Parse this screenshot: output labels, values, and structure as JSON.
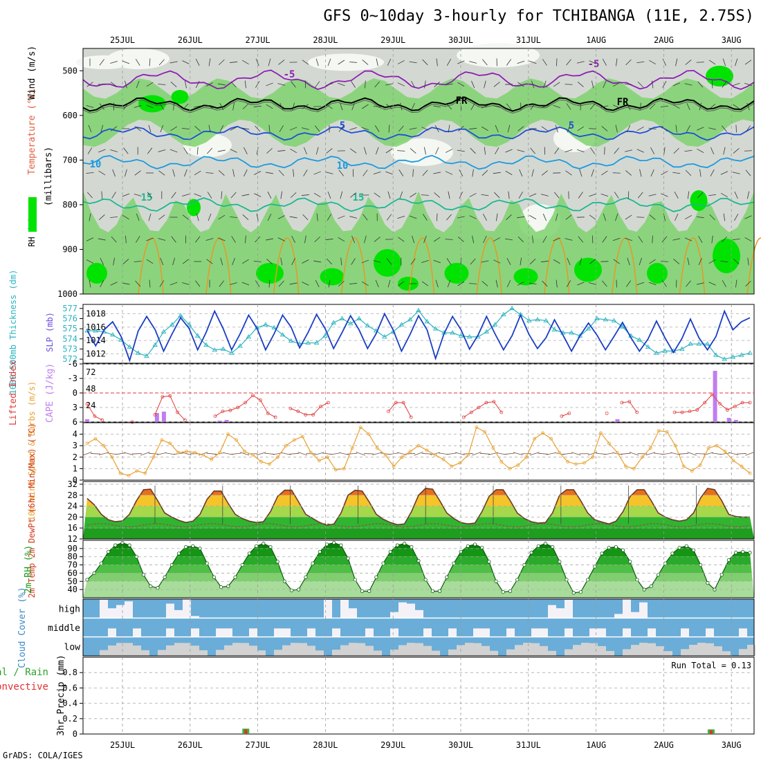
{
  "title": "GFS 0~10day 3-hourly for TCHIBANGA (11E, 2.75S)",
  "footer": "GrADS: COLA/IGES",
  "colors": {
    "rh_light": "#d4d8d2",
    "rh_mid": "#7ed36e",
    "rh_high": "#00e300",
    "temp_violet": "#8a1fb3",
    "temp_blue": "#1d4fd6",
    "temp_sky": "#1a9ae0",
    "temp_teal": "#19b88f",
    "temp_orange": "#e39b2a",
    "slp": "#1a3dc4",
    "thickness": "#2ab3c0",
    "lifted": "#e03a3a",
    "cape": "#c07ef0",
    "wind": "#e9a030",
    "temp_fill_hot": "#e86f1b",
    "temp_fill_warm": "#f5c32a",
    "temp_fill_mild": "#a5d84a",
    "temp_fill_cool": "#2fb52f",
    "rh_fill": "#22a822",
    "cloud_blue": "#6aadd8",
    "cloud_white": "#f4f2f7",
    "cloud_gray": "#d2d2d2",
    "precip_total": "#3cb43c",
    "precip_conv": "#e03030"
  },
  "chart_data": [
    {
      "type": "heatmap",
      "name": "upper-air",
      "x_ticks": [
        "25JUL",
        "26JUL",
        "27JUL",
        "28JUL",
        "29JUL",
        "30JUL",
        "31JUL",
        "1AUG",
        "2AUG",
        "3AUG"
      ],
      "ylabel_parts": [
        "RH (%)",
        "Temperature (°C)",
        "Wind (m/s)",
        "(millibars)"
      ],
      "y_ticks": [
        500,
        600,
        700,
        800,
        900,
        1000
      ],
      "ylim": [
        450,
        1000
      ],
      "contours": [
        {
          "label": "-5",
          "level_mb": 520,
          "color_key": "temp_violet"
        },
        {
          "label": "FR",
          "level_mb": 575,
          "color_key": "black"
        },
        {
          "label": "5",
          "level_mb": 640,
          "color_key": "temp_blue"
        },
        {
          "label": "10",
          "level_mb": 705,
          "color_key": "temp_sky"
        },
        {
          "label": "15",
          "level_mb": 800,
          "color_key": "temp_teal"
        }
      ],
      "contour_labels": [
        "-5",
        "5",
        "FR",
        "10",
        "15",
        "-5",
        "FR",
        "5",
        "10",
        "15"
      ]
    },
    {
      "type": "line",
      "name": "slp-thickness",
      "ylabel_left": "1000-500mb Thickness (dm)",
      "ylabel_right": "SLP (mb)",
      "left_ticks": [
        572,
        573,
        574,
        575,
        576,
        577
      ],
      "right_ticks": [
        1012,
        1014,
        1016,
        1018
      ],
      "slp_range": [
        1010.6,
        1019.4
      ],
      "thickness_range": [
        571.6,
        577.4
      ],
      "series": [
        {
          "name": "SLP",
          "values": [
            1015.5,
            1013.2,
            1015.6,
            1016.8,
            1014.6,
            1011.0,
            1015.4,
            1017.6,
            1015.6,
            1012.4,
            1015.0,
            1017.4,
            1015.8,
            1012.6,
            1015.2,
            1018.4,
            1015.8,
            1012.6,
            1015.0,
            1017.8,
            1015.8,
            1012.6,
            1015.0,
            1017.8,
            1016.0,
            1012.9,
            1015.2,
            1017.9,
            1015.8,
            1012.8,
            1015.2,
            1017.7,
            1015.6,
            1012.8,
            1015.0,
            1018.0,
            1015.6,
            1012.4,
            1014.9,
            1017.7,
            1015.6,
            1011.3,
            1015.0,
            1017.6,
            1015.6,
            1012.7,
            1014.8,
            1017.6,
            1015.0,
            1012.6,
            1014.7,
            1017.8,
            1014.9,
            1012.8,
            1014.4,
            1017.1,
            1014.8,
            1012.4,
            1014.7,
            1016.6,
            1014.8,
            1012.6,
            1014.6,
            1016.7,
            1014.4,
            1012.4,
            1014.2,
            1016.9,
            1014.4,
            1012.2,
            1014.3,
            1017.2,
            1014.4,
            1012.6,
            1014.6,
            1018.4,
            1015.6,
            1016.8,
            1017.4
          ]
        },
        {
          "name": "Thickness",
          "values": [
            574.8,
            574.8,
            574.7,
            574.4,
            573.9,
            573.2,
            572.6,
            572.3,
            573.4,
            574.7,
            575.4,
            576.3,
            575.4,
            574.3,
            573.4,
            572.9,
            573.0,
            572.6,
            573.3,
            574.2,
            575.1,
            575.4,
            575.1,
            574.4,
            573.8,
            573.5,
            573.6,
            573.6,
            574.3,
            575.6,
            576.0,
            575.5,
            576.0,
            575.3,
            574.8,
            574.2,
            574.7,
            575.4,
            575.9,
            576.8,
            575.7,
            575.0,
            574.6,
            574.6,
            574.3,
            574.2,
            574.2,
            574.7,
            575.4,
            576.4,
            577.0,
            576.4,
            575.8,
            575.9,
            575.8,
            574.9,
            574.6,
            574.6,
            574.3,
            575.0,
            576.0,
            575.9,
            575.8,
            575.2,
            574.3,
            573.9,
            573.2,
            572.6,
            572.8,
            572.8,
            573.0,
            573.5,
            573.5,
            573.5,
            572.4,
            572.0,
            572.2,
            572.4,
            572.6
          ]
        }
      ]
    },
    {
      "type": "bar",
      "name": "lifted-cape",
      "ylabel_left": "Lifted Index",
      "ylabel_right": "CAPE (J/kg)",
      "li_ticks": [
        -6,
        -3,
        0,
        3,
        6
      ],
      "cape_ticks": [
        24,
        48,
        72
      ],
      "series": [
        {
          "name": "Lifted Index",
          "values": [
            2.3,
            4.8,
            5.6,
            null,
            null,
            null,
            6.0,
            null,
            null,
            4.5,
            0.8,
            0.6,
            4.0,
            5.6,
            null,
            null,
            null,
            4.8,
            3.8,
            3.6,
            3.0,
            2.0,
            0.5,
            1.5,
            4.2,
            5.0,
            null,
            3.2,
            3.8,
            4.5,
            4.5,
            2.8,
            2.0,
            null,
            null,
            null,
            null,
            null,
            null,
            null,
            3.8,
            2.0,
            2.0,
            5.0,
            null,
            null,
            null,
            null,
            null,
            null,
            5.0,
            4.0,
            3.0,
            2.0,
            1.8,
            4.0,
            null,
            null,
            null,
            null,
            null,
            null,
            null,
            4.8,
            4.2,
            null,
            null,
            null,
            null,
            4.2,
            null,
            2.0,
            1.8,
            4.0,
            null,
            null,
            null,
            null,
            4.0,
            4.0,
            3.8,
            3.5,
            2.0,
            0.3,
            2.2,
            3.5,
            2.8,
            2.0,
            2.0
          ]
        },
        {
          "name": "CAPE",
          "values": [
            4,
            0,
            0,
            0,
            0,
            0,
            0,
            0,
            0,
            0,
            13,
            15,
            0,
            0,
            0,
            0,
            0,
            0,
            0,
            2,
            3,
            0,
            0,
            0,
            0,
            0,
            0,
            0,
            0,
            0,
            0,
            0,
            0,
            0,
            0,
            0,
            0,
            0,
            0,
            0,
            0,
            0,
            0,
            0,
            0,
            0,
            0,
            0,
            0,
            0,
            0,
            0,
            0,
            0,
            0,
            0,
            0,
            0,
            0,
            0,
            0,
            0,
            0,
            0,
            0,
            0,
            0,
            0,
            0,
            0,
            0,
            0,
            0,
            0,
            0,
            0,
            4,
            0,
            0,
            0,
            0,
            0,
            0,
            0,
            0,
            0,
            0,
            0,
            0,
            0,
            74,
            0,
            6,
            3,
            0,
            0
          ]
        }
      ]
    },
    {
      "type": "line",
      "name": "wind10m",
      "ylabel": "10m Wind Speed & Barbs (m/s)",
      "ylim": [
        0,
        5
      ],
      "y_ticks": [
        0,
        1,
        2,
        3,
        4
      ],
      "values": [
        3.2,
        3.6,
        3.0,
        2.0,
        0.6,
        0.4,
        0.8,
        0.6,
        2.0,
        3.5,
        3.2,
        2.4,
        2.5,
        2.4,
        2.2,
        1.8,
        2.4,
        4.0,
        3.5,
        2.5,
        2.2,
        1.6,
        1.4,
        2.0,
        3.0,
        3.5,
        3.8,
        2.4,
        1.7,
        2.0,
        0.9,
        1.0,
        2.8,
        4.6,
        4.0,
        2.8,
        2.2,
        1.2,
        2.0,
        2.5,
        3.0,
        2.6,
        2.2,
        1.8,
        1.2,
        1.5,
        2.2,
        4.6,
        4.2,
        2.8,
        1.6,
        1.0,
        1.3,
        2.0,
        3.6,
        4.1,
        3.6,
        2.4,
        1.6,
        1.4,
        1.5,
        2.0,
        4.1,
        3.2,
        2.4,
        1.2,
        1.0,
        2.0,
        2.8,
        4.3,
        4.2,
        3.0,
        1.2,
        0.8,
        1.3,
        2.8,
        3.0,
        2.5,
        1.7,
        1.2,
        0.6
      ]
    },
    {
      "type": "area",
      "name": "temp2m",
      "ylabel": "2m Temp 2m DewPt (6hr Min/Max) (°C)",
      "ylim": [
        12,
        33
      ],
      "y_ticks": [
        12,
        16,
        20,
        24,
        28,
        32
      ],
      "temp": [
        26.8,
        24.5,
        21.0,
        19.0,
        18.3,
        18.6,
        21.0,
        26.0,
        30.0,
        30.2,
        26.0,
        21.5,
        20.0,
        18.8,
        18.0,
        18.5,
        21.0,
        26.5,
        29.5,
        29.5,
        25.0,
        21.0,
        19.5,
        18.5,
        18.0,
        18.3,
        22.0,
        27.5,
        29.8,
        29.8,
        25.5,
        21.0,
        19.5,
        18.0,
        17.0,
        17.5,
        21.5,
        28.0,
        29.8,
        29.5,
        25.5,
        21.0,
        19.2,
        18.0,
        17.2,
        17.5,
        22.0,
        28.0,
        30.5,
        30.2,
        26.0,
        21.5,
        19.5,
        18.0,
        17.5,
        17.8,
        22.0,
        27.5,
        30.0,
        30.0,
        26.0,
        21.5,
        19.5,
        18.3,
        17.8,
        18.0,
        21.5,
        28.0,
        30.0,
        30.0,
        26.0,
        21.5,
        19.0,
        18.2,
        17.5,
        18.5,
        22.0,
        27.5,
        30.0,
        30.0,
        26.0,
        21.5,
        20.0,
        19.0,
        18.5,
        19.0,
        21.5,
        27.0,
        30.5,
        30.0,
        26.0,
        21.0,
        20.2,
        20.0,
        20.0
      ]
    },
    {
      "type": "area",
      "name": "rh2m",
      "ylabel": "2m RH (%)",
      "ylim": [
        30,
        100
      ],
      "y_ticks": [
        40,
        50,
        60,
        70,
        80,
        90
      ],
      "values": [
        52,
        60,
        72,
        86,
        94,
        97,
        94,
        80,
        58,
        44,
        42,
        55,
        70,
        84,
        92,
        93,
        90,
        72,
        55,
        43,
        44,
        55,
        70,
        84,
        93,
        96,
        92,
        74,
        50,
        39,
        40,
        55,
        72,
        86,
        95,
        97,
        94,
        78,
        52,
        38,
        38,
        55,
        72,
        86,
        94,
        96,
        92,
        75,
        52,
        38,
        38,
        55,
        72,
        86,
        93,
        95,
        91,
        74,
        50,
        37,
        38,
        52,
        70,
        85,
        93,
        96,
        92,
        74,
        52,
        36,
        37,
        52,
        68,
        84,
        91,
        92,
        88,
        74,
        52,
        40,
        44,
        58,
        72,
        84,
        91,
        93,
        88,
        70,
        48,
        40,
        58,
        76,
        85,
        86,
        85
      ]
    },
    {
      "type": "bar",
      "name": "cloud-cover",
      "ylabel": "Cloud Cover (%)",
      "rows": [
        "high",
        "middle",
        "low"
      ]
    },
    {
      "type": "bar",
      "name": "precip",
      "ylabel_parts": [
        "Total / Rain",
        "Convective",
        "3hr Precip (mm)"
      ],
      "ylim": [
        0,
        1.0
      ],
      "y_ticks": [
        0,
        0.2,
        0.4,
        0.6,
        0.8
      ],
      "run_total_text": "Run Total = 0.13",
      "events": [
        {
          "day_index": 22.5,
          "total": 0.07,
          "convective": 0.06
        },
        {
          "day_index": 88.5,
          "total": 0.06,
          "convective": 0.05
        }
      ]
    }
  ]
}
